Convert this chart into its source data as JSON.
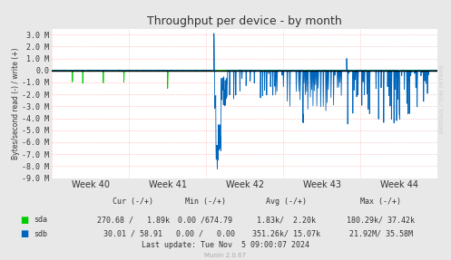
{
  "title": "Throughput per device - by month",
  "ylabel": "Bytes/second read (-) / write (+)",
  "xlabel_ticks": [
    "Week 40",
    "Week 41",
    "Week 42",
    "Week 43",
    "Week 44"
  ],
  "ylim": [
    -9000000,
    3500000
  ],
  "yticks": [
    -9000000,
    -8000000,
    -7000000,
    -6000000,
    -5000000,
    -4000000,
    -3000000,
    -2000000,
    -1000000,
    0,
    1000000,
    2000000,
    3000000
  ],
  "ytick_labels": [
    "-9.0 M",
    "-8.0 M",
    "-7.0 M",
    "-6.0 M",
    "-5.0 M",
    "-4.0 M",
    "-3.0 M",
    "-2.0 M",
    "-1.0 M",
    "0.0",
    "1.0 M",
    "2.0 M",
    "3.0 M"
  ],
  "bg_color": "#e8e8e8",
  "plot_bg_color": "#ffffff",
  "grid_color": "#ffaaaa",
  "title_color": "#333333",
  "axis_color": "#333333",
  "sda_color": "#00cc00",
  "sdb_color": "#0066bb",
  "footer_text": "Last update: Tue Nov  5 09:00:07 2024",
  "munin_text": "Munin 2.0.67",
  "sda_stats": [
    "270.68 /   1.89k",
    "0.00 /674.79",
    "1.83k/  2.20k",
    "180.29k/ 37.42k"
  ],
  "sdb_stats": [
    "30.01 / 58.91",
    "0.00 /   0.00",
    "351.26k/ 15.07k",
    "21.92M/ 35.58M"
  ],
  "rrdtool_text": "RRDTOOL / TOBI OETIKER"
}
